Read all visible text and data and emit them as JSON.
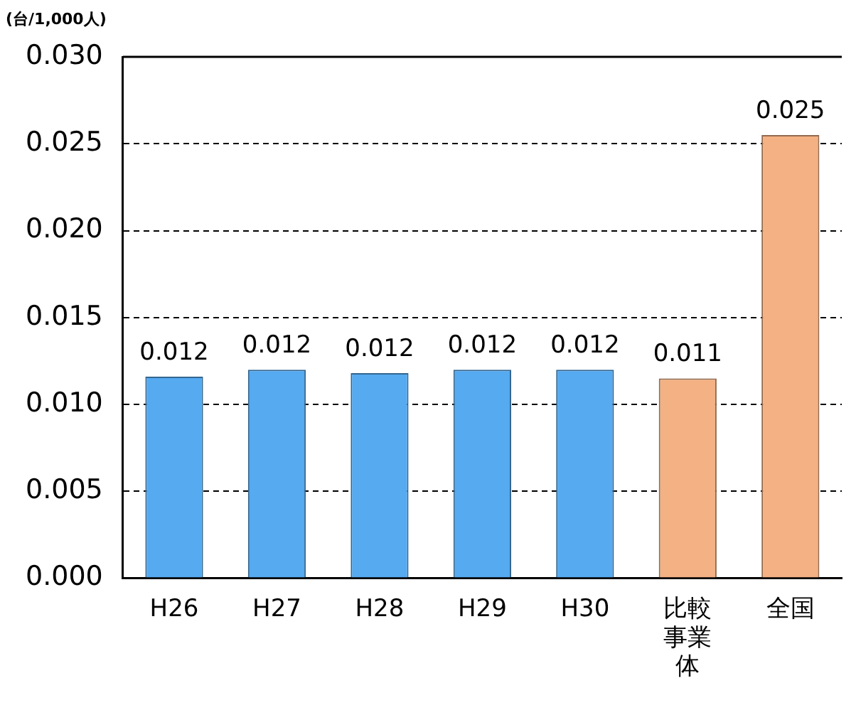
{
  "chart_data": {
    "type": "bar",
    "ylabel": "(台/1,000人)",
    "categories": [
      "H26",
      "H27",
      "H28",
      "H29",
      "H30",
      "比較事業体",
      "全国"
    ],
    "values": [
      0.0116,
      0.012,
      0.0118,
      0.012,
      0.012,
      0.0115,
      0.0255
    ],
    "value_labels": [
      "0.012",
      "0.012",
      "0.012",
      "0.012",
      "0.012",
      "0.011",
      "0.025"
    ],
    "colors": [
      "#55aaf0",
      "#55aaf0",
      "#55aaf0",
      "#55aaf0",
      "#55aaf0",
      "#f4b183",
      "#f4b183"
    ],
    "ylim": [
      0,
      0.03
    ],
    "yticks": [
      {
        "value": 0,
        "label": "0.000"
      },
      {
        "value": 0.005,
        "label": "0.005"
      },
      {
        "value": 0.01,
        "label": "0.010"
      },
      {
        "value": 0.015,
        "label": "0.015"
      },
      {
        "value": 0.02,
        "label": "0.020"
      },
      {
        "value": 0.025,
        "label": "0.025"
      },
      {
        "value": 0.03,
        "label": "0.030"
      }
    ],
    "grid": "y",
    "legend": false
  }
}
